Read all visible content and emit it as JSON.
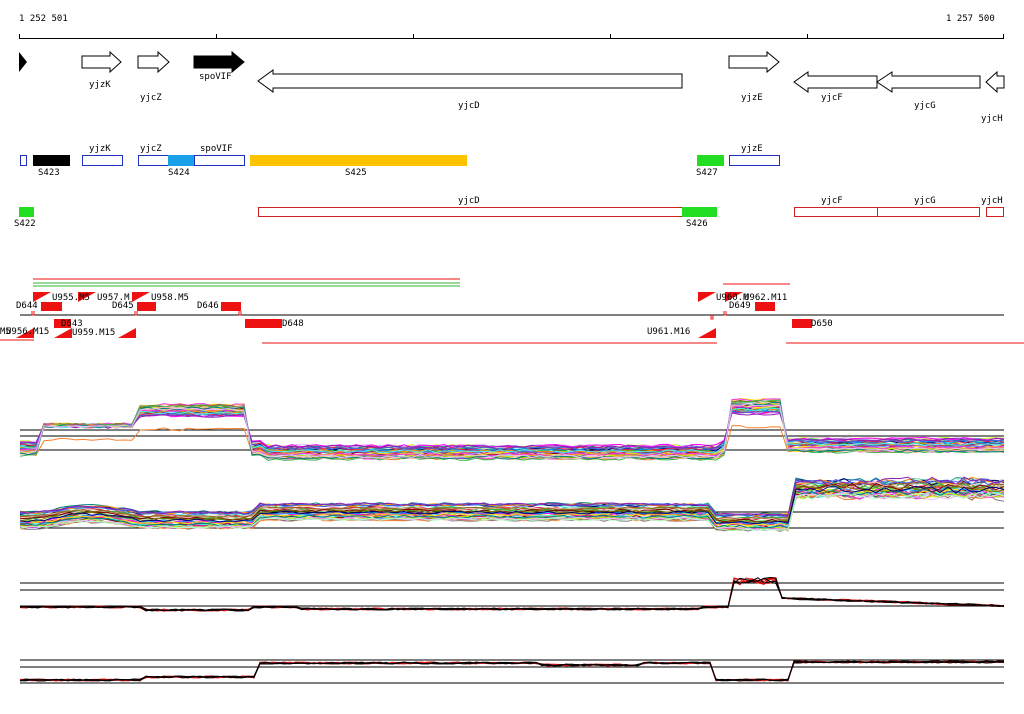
{
  "coordinates": {
    "start": "1 252 501",
    "end": "1 257 500"
  },
  "genes_top": [
    {
      "name": "yjzK",
      "dir": "right"
    },
    {
      "name": "yjcZ",
      "dir": "right"
    },
    {
      "name": "spoVIF",
      "dir": "right",
      "filled": true
    },
    {
      "name": "yjcD",
      "dir": "left"
    },
    {
      "name": "yjzE",
      "dir": "right"
    },
    {
      "name": "yjcF",
      "dir": "left"
    },
    {
      "name": "yjcG",
      "dir": "left"
    },
    {
      "name": "yjcH",
      "dir": "left"
    }
  ],
  "annotation_row1": {
    "genes": [
      "yjzK",
      "yjcZ",
      "spoVIF",
      "yjzE"
    ],
    "segments": [
      "S423",
      "S424",
      "S425",
      "S427"
    ]
  },
  "annotation_row2": {
    "genes": [
      "yjcD",
      "yjcF",
      "yjcG",
      "yjcH"
    ],
    "segments": [
      "S422",
      "S426"
    ]
  },
  "transcription_units": [
    "D644",
    "U955.M5",
    "U957.M",
    "D645",
    "U958.M5",
    "D646",
    "D643",
    "U959.M15",
    "U956.M15",
    "M5",
    "D648",
    "U960.M",
    "U962.M11",
    "D649",
    "U961.M16",
    "D650"
  ],
  "colors": {
    "gene_outline": "#000000",
    "annotation_outline_blue": "#1f2fbf",
    "annotation_outline_red": "#d02020",
    "segment_black": "#000000",
    "segment_cyan": "#1aa0e8",
    "segment_orange": "#ffc400",
    "segment_green": "#22dd22",
    "tu_red": "#ee1111",
    "trace_green": "#30b030"
  }
}
